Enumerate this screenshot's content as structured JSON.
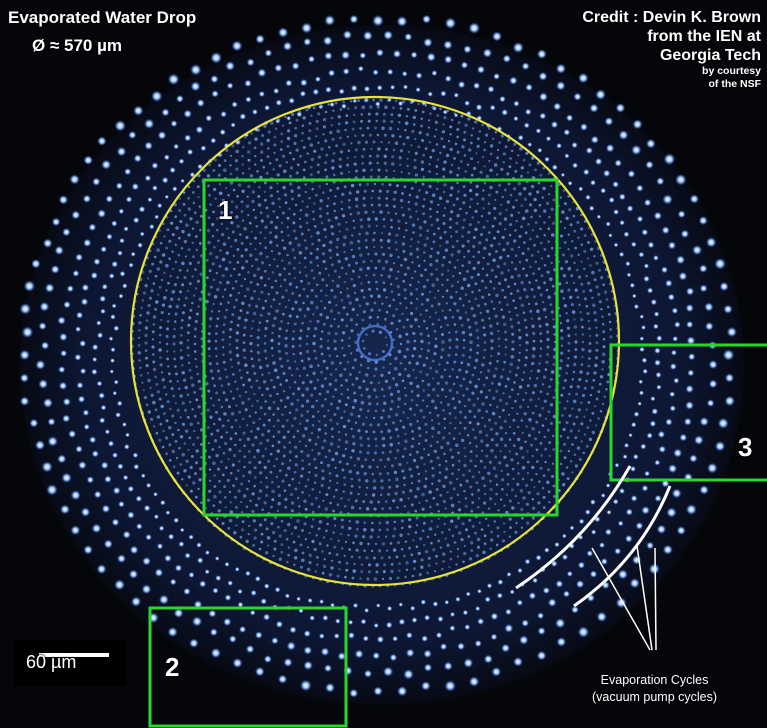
{
  "image": {
    "title": "Evaporated Water Drop",
    "diameter": "Ø ≈ 570 µm",
    "credit": {
      "line1": "Credit : Devin K. Brown",
      "line2": "from the IEN at",
      "line3": "Georgia Tech",
      "line4": "by courtesy",
      "line5": "of the NSF"
    },
    "regions": [
      "1",
      "2",
      "3"
    ],
    "scale_bar": "60 µm",
    "annotation": {
      "line1": "Evaporation Cycles",
      "line2": "(vacuum pump cycles)"
    },
    "colors": {
      "background": "#05060a",
      "droplets": "#7fb6ff",
      "circle": "#e8e33a",
      "boxes": "#2bd62b",
      "annotation_lines": "#ffffff"
    }
  }
}
